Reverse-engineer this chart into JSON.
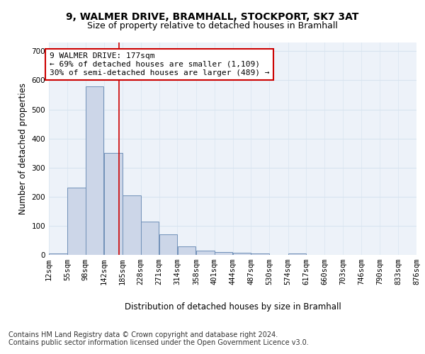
{
  "title_line1": "9, WALMER DRIVE, BRAMHALL, STOCKPORT, SK7 3AT",
  "title_line2": "Size of property relative to detached houses in Bramhall",
  "xlabel": "Distribution of detached houses by size in Bramhall",
  "ylabel": "Number of detached properties",
  "bar_color": "#ccd6e8",
  "bar_edge_color": "#7090b8",
  "grid_color": "#d8e4f0",
  "background_color": "#edf2f9",
  "annotation_text": "9 WALMER DRIVE: 177sqm\n← 69% of detached houses are smaller (1,109)\n30% of semi-detached houses are larger (489) →",
  "vline_x": 177,
  "vline_color": "#cc0000",
  "bin_edges": [
    12,
    55,
    98,
    142,
    185,
    228,
    271,
    314,
    358,
    401,
    444,
    487,
    530,
    574,
    617,
    660,
    703,
    746,
    790,
    833,
    876
  ],
  "values": [
    5,
    232,
    580,
    350,
    205,
    115,
    70,
    28,
    15,
    10,
    8,
    5,
    0,
    5,
    0,
    0,
    0,
    0,
    0,
    0
  ],
  "ylim": [
    0,
    730
  ],
  "yticks": [
    0,
    100,
    200,
    300,
    400,
    500,
    600,
    700
  ],
  "footer_text": "Contains HM Land Registry data © Crown copyright and database right 2024.\nContains public sector information licensed under the Open Government Licence v3.0.",
  "title_fontsize": 10,
  "subtitle_fontsize": 9,
  "axis_label_fontsize": 8.5,
  "tick_fontsize": 7.5,
  "annotation_fontsize": 8,
  "footer_fontsize": 7
}
